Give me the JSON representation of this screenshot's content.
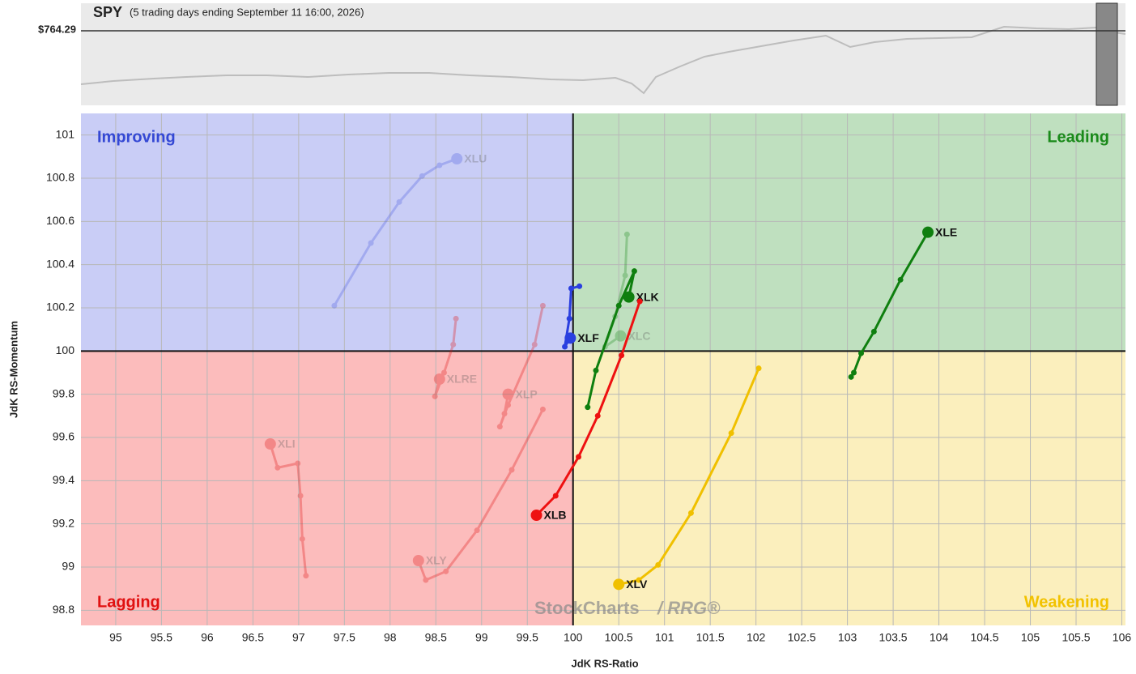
{
  "chart_data": {
    "type": "rrg",
    "title": "SPY",
    "subtitle": "(5 trading days ending September 11 16:00, 2026)",
    "price_label": "$764.29",
    "xlabel": "JdK RS-Ratio",
    "ylabel": "JdK RS-Momentum",
    "xlim": [
      94.62,
      106.04
    ],
    "ylim": [
      98.73,
      101.1
    ],
    "xticks": [
      95,
      95.5,
      96,
      96.5,
      97,
      97.5,
      98,
      98.5,
      99,
      99.5,
      100,
      100.5,
      101,
      101.5,
      102,
      102.5,
      103,
      103.5,
      104,
      104.5,
      105,
      105.5,
      106
    ],
    "yticks": [
      98.8,
      99,
      99.2,
      99.4,
      99.6,
      99.8,
      100,
      100.2,
      100.4,
      100.6,
      100.8,
      101
    ],
    "grid": true,
    "quadrants": [
      {
        "name": "Improving",
        "corner": "top-left",
        "fill": "#c9cdf6",
        "color": "#3448d4"
      },
      {
        "name": "Leading",
        "corner": "top-right",
        "fill": "#bfe0bf",
        "color": "#1a8a1a"
      },
      {
        "name": "Lagging",
        "corner": "bottom-left",
        "fill": "#fcbcbc",
        "color": "#e01010"
      },
      {
        "name": "Weakening",
        "corner": "bottom-right",
        "fill": "#fbefbd",
        "color": "#f2c200"
      }
    ],
    "watermark": [
      "StockCharts",
      "/ RRG®"
    ],
    "series": [
      {
        "name": "XLU",
        "color": "#4a5be0",
        "opacity": 0.3,
        "x": [
          97.39,
          97.79,
          98.1,
          98.35,
          98.54,
          98.73
        ],
        "values": [
          100.21,
          100.5,
          100.69,
          100.81,
          100.86,
          100.89
        ]
      },
      {
        "name": "XLC",
        "color": "#1a8a1a",
        "opacity": 0.3,
        "x": [
          100.59,
          100.57,
          100.46,
          100.35,
          100.52
        ],
        "values": [
          100.54,
          100.35,
          100.16,
          100.02,
          100.07
        ]
      },
      {
        "name": "XLRE",
        "color": "#e01010",
        "opacity": 0.3,
        "x": [
          98.72,
          98.69,
          98.59,
          98.49,
          98.54
        ],
        "values": [
          100.15,
          100.03,
          99.9,
          99.79,
          99.87
        ]
      },
      {
        "name": "XLP",
        "color": "#e01010",
        "opacity": 0.3,
        "x": [
          99.67,
          99.58,
          99.29,
          99.2,
          99.25,
          99.29
        ],
        "values": [
          100.21,
          100.03,
          99.75,
          99.65,
          99.71,
          99.8
        ]
      },
      {
        "name": "XLY",
        "color": "#e01010",
        "opacity": 0.3,
        "x": [
          99.67,
          99.33,
          98.95,
          98.61,
          98.39,
          98.31
        ],
        "values": [
          99.73,
          99.45,
          99.17,
          98.98,
          98.94,
          99.03
        ]
      },
      {
        "name": "XLI",
        "color": "#e01010",
        "opacity": 0.3,
        "x": [
          97.08,
          97.04,
          97.02,
          96.99,
          96.77,
          96.69
        ],
        "values": [
          98.96,
          99.13,
          99.33,
          99.48,
          99.46,
          99.57
        ]
      },
      {
        "name": "XLE",
        "color": "#0f7f0f",
        "opacity": 1,
        "x": [
          103.04,
          103.07,
          103.15,
          103.29,
          103.58,
          103.88
        ],
        "values": [
          99.88,
          99.9,
          99.99,
          100.09,
          100.33,
          100.55
        ]
      },
      {
        "name": "XLK",
        "color": "#0f7f0f",
        "opacity": 1,
        "x": [
          100.16,
          100.25,
          100.5,
          100.67,
          100.61
        ],
        "values": [
          99.74,
          99.91,
          100.21,
          100.37,
          100.25
        ]
      },
      {
        "name": "XLB",
        "color": "#ee1111",
        "opacity": 1,
        "x": [
          100.73,
          100.53,
          100.27,
          100.06,
          99.81,
          99.6
        ],
        "values": [
          100.23,
          99.98,
          99.7,
          99.51,
          99.33,
          99.24
        ]
      },
      {
        "name": "XLV",
        "color": "#f0c000",
        "opacity": 1,
        "x": [
          102.03,
          101.73,
          101.29,
          100.93,
          100.72,
          100.5
        ],
        "values": [
          99.92,
          99.62,
          99.25,
          99.01,
          98.94,
          98.92
        ]
      },
      {
        "name": "XLF",
        "color": "#2a3fe0",
        "opacity": 1,
        "x": [
          100.07,
          99.98,
          99.96,
          99.91,
          99.97
        ],
        "values": [
          100.3,
          100.29,
          100.15,
          100.02,
          100.06
        ]
      }
    ]
  }
}
